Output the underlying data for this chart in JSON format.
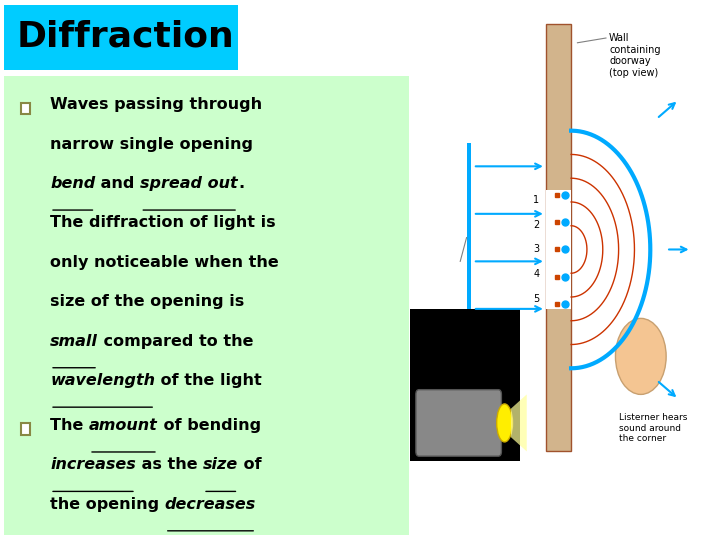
{
  "title": "Diffraction",
  "title_bg": "#00CCFF",
  "title_color": "#000000",
  "content_bg": "#CCFFCC",
  "bullet_color": "#888844",
  "text_color": "#000000",
  "slide_bg": "#FFFFFF",
  "bullet1_parts": [
    {
      "text": "Waves passing through\nnarrow single opening\n",
      "style": "normal"
    },
    {
      "text": "bend",
      "style": "bold_italic_underline"
    },
    {
      "text": " and ",
      "style": "normal"
    },
    {
      "text": "spread out",
      "style": "bold_italic_underline"
    },
    {
      "text": ".\nThe diffraction of light is\nonly noticeable when the\nsize of the opening is\n",
      "style": "normal"
    },
    {
      "text": "small",
      "style": "bold_italic_underline"
    },
    {
      "text": " compared to the\n",
      "style": "normal"
    },
    {
      "text": "wavelength",
      "style": "bold_italic_underline"
    },
    {
      "text": " of the light",
      "style": "normal"
    }
  ],
  "bullet2_parts": [
    {
      "text": "The ",
      "style": "normal"
    },
    {
      "text": "amount",
      "style": "bold_italic_underline"
    },
    {
      "text": " of bending\n",
      "style": "normal"
    },
    {
      "text": "increases",
      "style": "bold_italic_underline"
    },
    {
      "text": " as the ",
      "style": "normal"
    },
    {
      "text": "size",
      "style": "bold_italic_underline"
    },
    {
      "text": " of\nthe opening ",
      "style": "normal"
    },
    {
      "text": "decreases",
      "style": "bold_italic_underline"
    }
  ]
}
